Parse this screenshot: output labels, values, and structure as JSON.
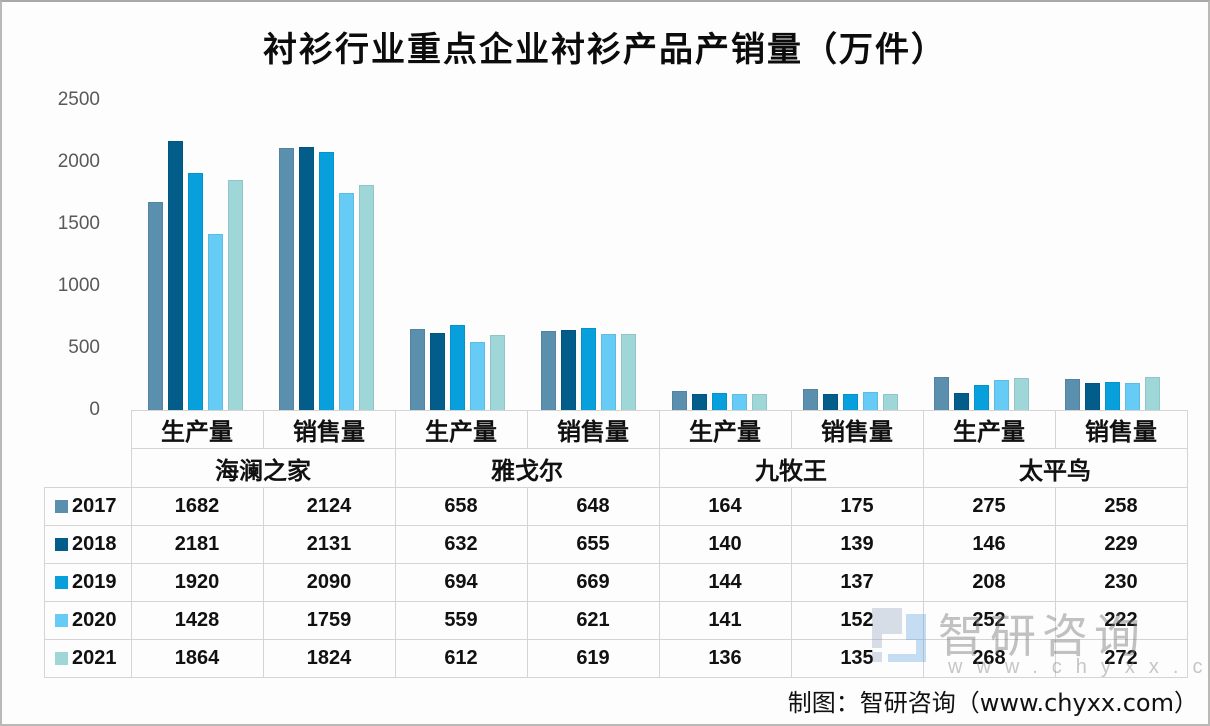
{
  "title": "衬衫行业重点企业衬衫产品产销量（万件）",
  "source": "制图：智研咨询（www.chyxx.com）",
  "watermark": {
    "text": "智研咨询",
    "url": "www.chyxx.com"
  },
  "colors": {
    "2017": "#5b8fae",
    "2018": "#035d8a",
    "2019": "#079fdc",
    "2020": "#66cbf5",
    "2021": "#9fd6d8"
  },
  "chart_data": {
    "type": "bar",
    "title": "衬衫行业重点企业衬衫产品产销量（万件）",
    "xlabel": "",
    "ylabel": "",
    "ylim": [
      0,
      2500
    ],
    "yticks": [
      0,
      500,
      1000,
      1500,
      2000,
      2500
    ],
    "grid": false,
    "legend_position": "data-table-left",
    "companies": [
      "海澜之家",
      "雅戈尔",
      "九牧王",
      "太平鸟"
    ],
    "metrics": [
      "生产量",
      "销售量"
    ],
    "categories": [
      "海澜之家-生产量",
      "海澜之家-销售量",
      "雅戈尔-生产量",
      "雅戈尔-销售量",
      "九牧王-生产量",
      "九牧王-销售量",
      "太平鸟-生产量",
      "太平鸟-销售量"
    ],
    "series": [
      {
        "name": "2017",
        "values": [
          1682,
          2124,
          658,
          648,
          164,
          175,
          275,
          258
        ]
      },
      {
        "name": "2018",
        "values": [
          2181,
          2131,
          632,
          655,
          140,
          139,
          146,
          229
        ]
      },
      {
        "name": "2019",
        "values": [
          1920,
          2090,
          694,
          669,
          144,
          137,
          208,
          230
        ]
      },
      {
        "name": "2020",
        "values": [
          1428,
          1759,
          559,
          621,
          141,
          152,
          252,
          222
        ]
      },
      {
        "name": "2021",
        "values": [
          1864,
          1824,
          612,
          619,
          136,
          135,
          268,
          272
        ]
      }
    ]
  }
}
